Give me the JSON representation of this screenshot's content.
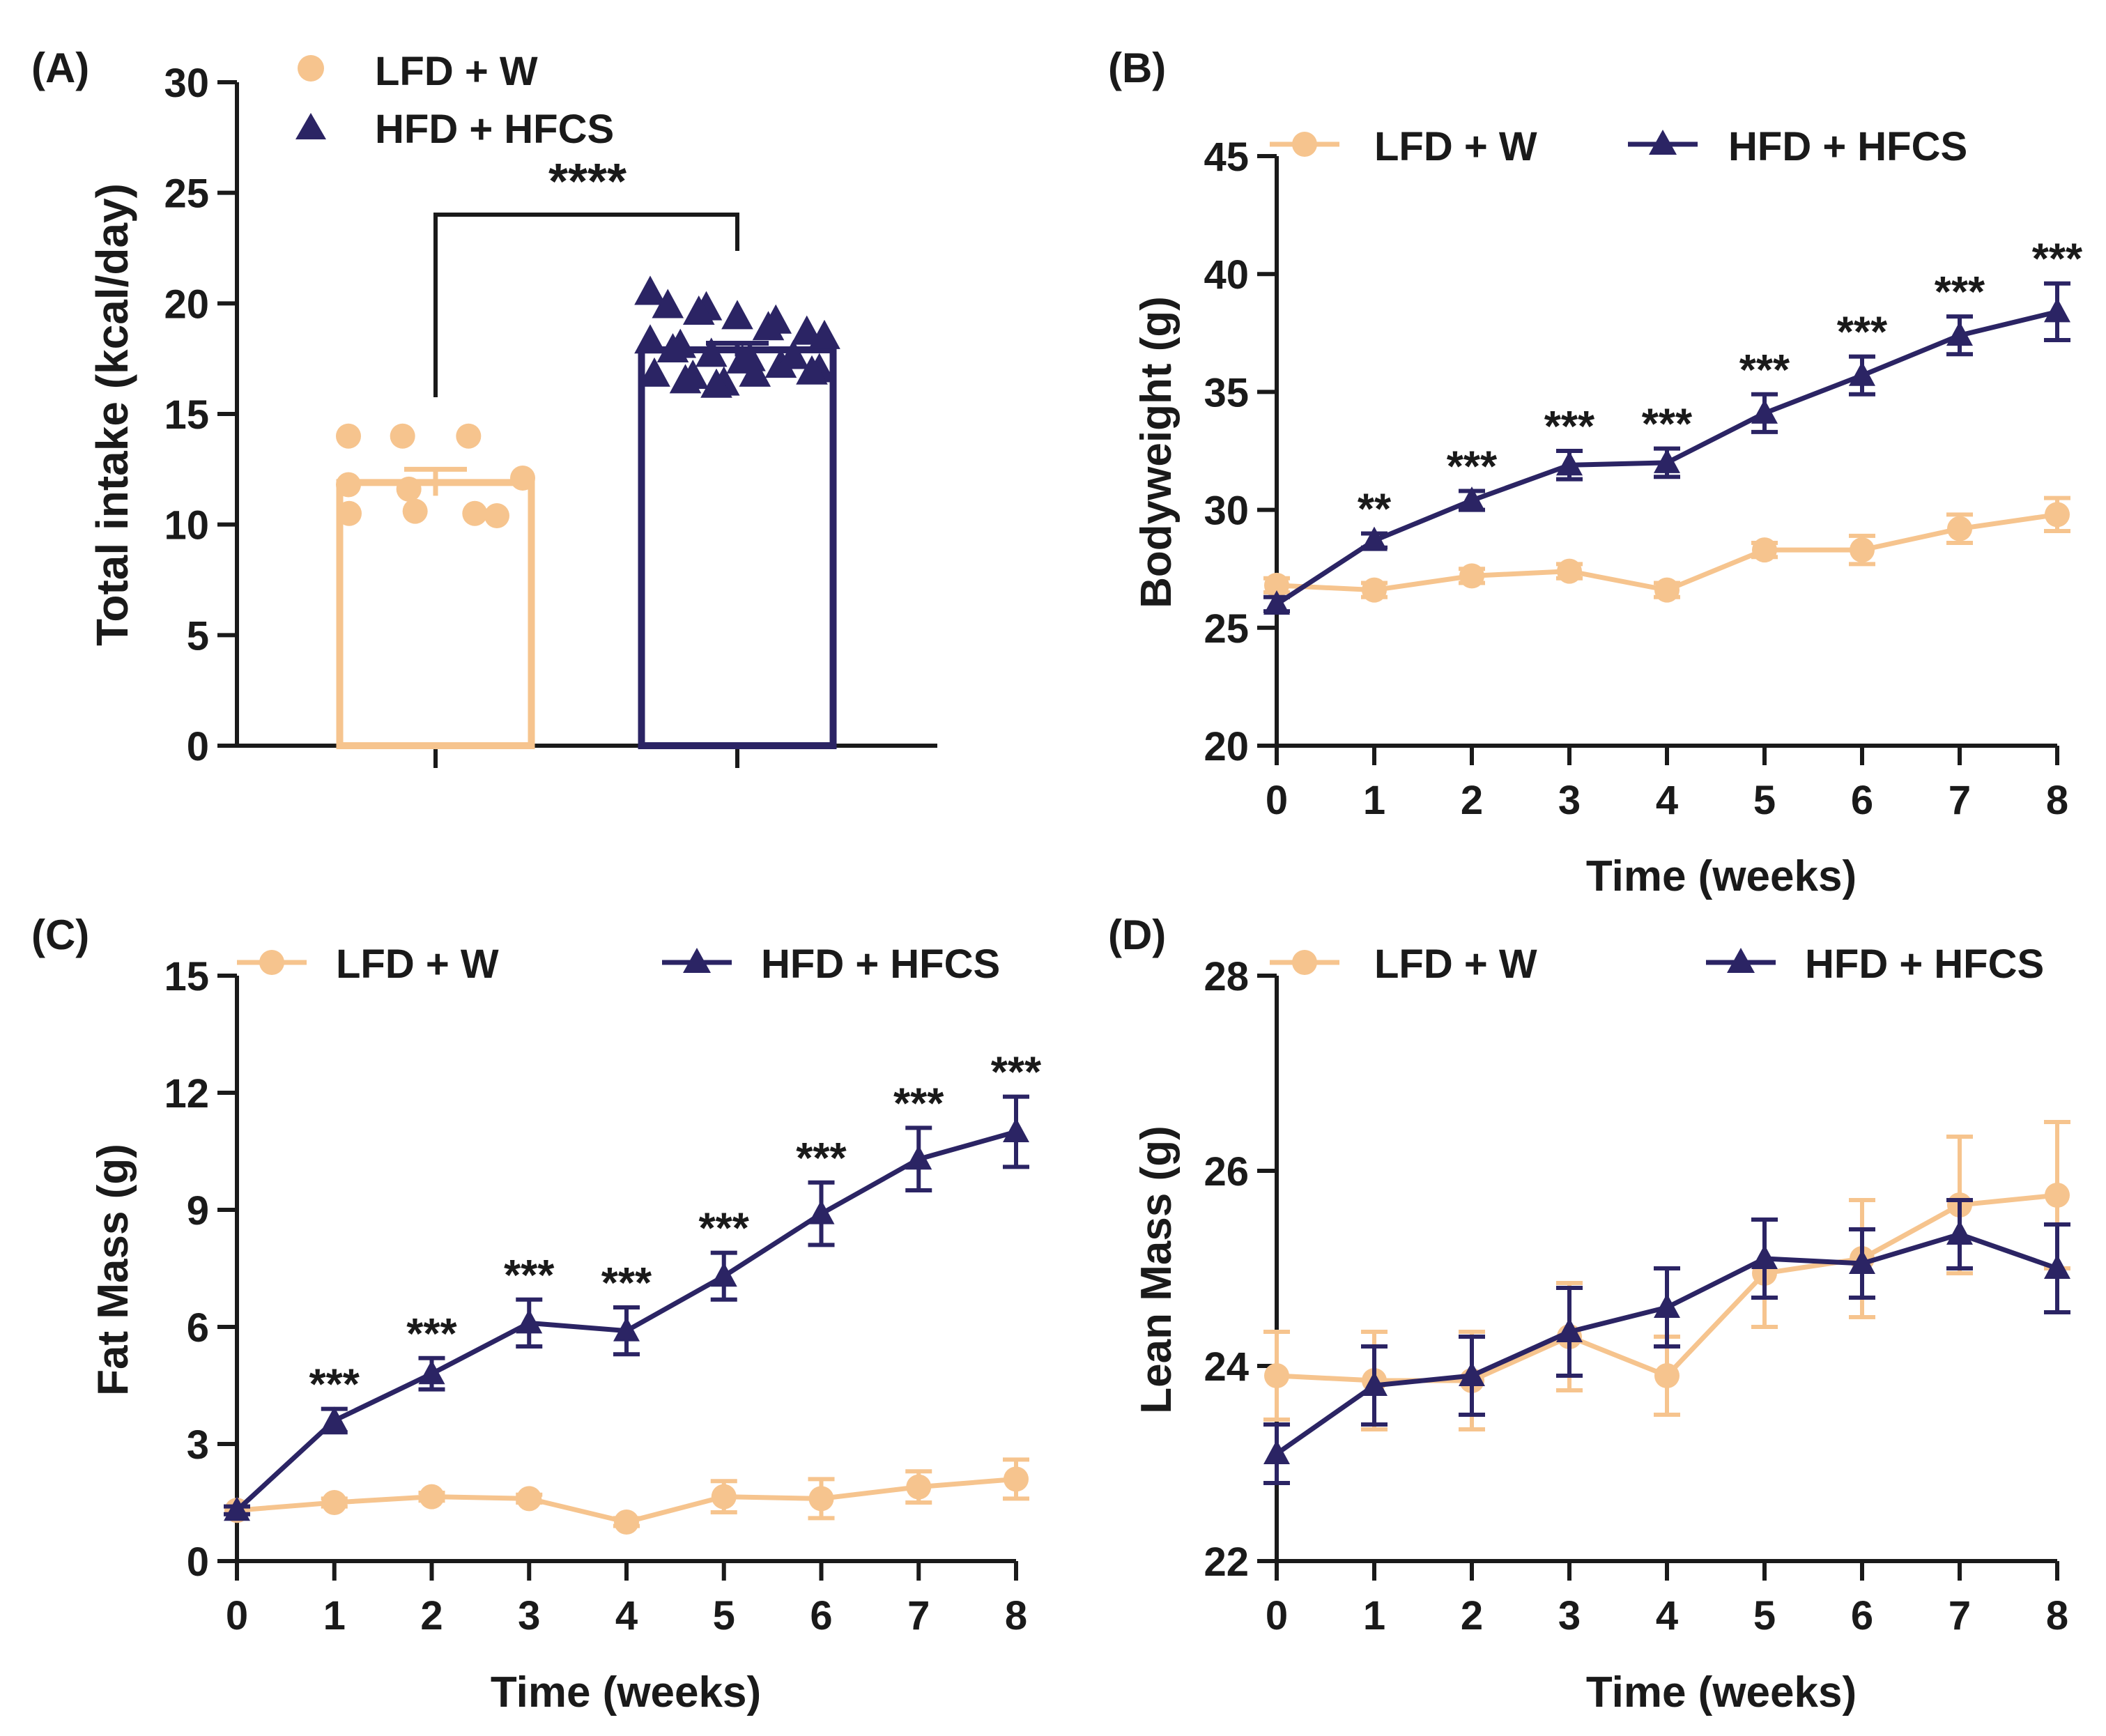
{
  "figure": {
    "groups": [
      {
        "name": "LFD + W",
        "color": "#f6c48e",
        "marker": "circle"
      },
      {
        "name": "HFD + HFCS",
        "color": "#2b2464",
        "marker": "triangle"
      }
    ]
  },
  "chart_data": [
    {
      "id": "A",
      "panel_label": "(A)",
      "type": "bar",
      "ylabel": "Total intake (kcal/day)",
      "xlabel": "",
      "ylim": [
        0,
        30
      ],
      "yticks": [
        0,
        5,
        10,
        15,
        20,
        25,
        30
      ],
      "categories": [
        "LFD + W",
        "HFD + HFCS"
      ],
      "legend": [
        "LFD + W",
        "HFD + HFCS"
      ],
      "significance": "****",
      "series": [
        {
          "name": "LFD + W",
          "mean": 11.9,
          "sem": 0.6,
          "points": [
            14.0,
            14.0,
            14.0,
            12.1,
            11.8,
            11.6,
            10.5,
            10.4,
            10.5,
            10.6
          ]
        },
        {
          "name": "HFD + HFCS",
          "mean": 17.9,
          "sem": 0.3,
          "points": [
            20.5,
            19.9,
            19.8,
            19.6,
            19.4,
            19.2,
            18.9,
            18.7,
            18.5,
            18.3,
            18.1,
            17.9,
            17.7,
            17.5,
            17.4,
            17.2,
            17.0,
            16.9,
            16.8,
            16.7,
            16.5,
            16.4,
            16.3,
            16.8,
            17.6
          ]
        }
      ]
    },
    {
      "id": "B",
      "panel_label": "(B)",
      "type": "line",
      "xlabel": "Time (weeks)",
      "ylabel": "Bodyweight (g)",
      "x": [
        0,
        1,
        2,
        3,
        4,
        5,
        6,
        7,
        8
      ],
      "ylim": [
        20,
        45
      ],
      "yticks": [
        20,
        25,
        30,
        35,
        40,
        45
      ],
      "legend": [
        "LFD + W",
        "HFD + HFCS"
      ],
      "significance": [
        "",
        "**",
        "***",
        "***",
        "***",
        "***",
        "***",
        "***",
        "***"
      ],
      "series": [
        {
          "name": "LFD + W",
          "values": [
            26.8,
            26.6,
            27.2,
            27.4,
            26.6,
            28.3,
            28.3,
            29.2,
            29.8
          ],
          "errors": [
            0.3,
            0.3,
            0.3,
            0.3,
            0.3,
            0.3,
            0.6,
            0.6,
            0.7
          ]
        },
        {
          "name": "HFD + HFCS",
          "values": [
            26.0,
            28.7,
            30.4,
            31.9,
            32.0,
            34.1,
            35.7,
            37.4,
            38.4
          ],
          "errors": [
            0.3,
            0.3,
            0.4,
            0.6,
            0.6,
            0.8,
            0.8,
            0.8,
            1.2
          ]
        }
      ]
    },
    {
      "id": "C",
      "panel_label": "(C)",
      "type": "line",
      "xlabel": "Time (weeks)",
      "ylabel": "Fat Mass (g)",
      "x": [
        0,
        1,
        2,
        3,
        4,
        5,
        6,
        7,
        8
      ],
      "ylim": [
        0,
        15
      ],
      "yticks": [
        0,
        3,
        6,
        9,
        12,
        15
      ],
      "legend": [
        "LFD + W",
        "HFD + HFCS"
      ],
      "significance": [
        "",
        "***",
        "***",
        "***",
        "***",
        "***",
        "***",
        "***",
        "***"
      ],
      "series": [
        {
          "name": "LFD + W",
          "values": [
            1.3,
            1.5,
            1.65,
            1.6,
            1.0,
            1.65,
            1.6,
            1.9,
            2.1
          ],
          "errors": [
            0.1,
            0.1,
            0.1,
            0.1,
            0.1,
            0.4,
            0.5,
            0.4,
            0.5
          ]
        },
        {
          "name": "HFD + HFCS",
          "values": [
            1.3,
            3.6,
            4.8,
            6.1,
            5.9,
            7.3,
            8.9,
            10.3,
            11.0
          ],
          "errors": [
            0.1,
            0.3,
            0.4,
            0.6,
            0.6,
            0.6,
            0.8,
            0.8,
            0.9
          ]
        }
      ]
    },
    {
      "id": "D",
      "panel_label": "(D)",
      "type": "line",
      "xlabel": "Time (weeks)",
      "ylabel": "Lean Mass (g)",
      "x": [
        0,
        1,
        2,
        3,
        4,
        5,
        6,
        7,
        8
      ],
      "ylim": [
        22,
        28
      ],
      "yticks": [
        22,
        24,
        26,
        28
      ],
      "legend": [
        "LFD + W",
        "HFD + HFCS"
      ],
      "significance": [
        "",
        "",
        "",
        "",
        "",
        "",
        "",
        "",
        ""
      ],
      "series": [
        {
          "name": "LFD + W",
          "values": [
            23.9,
            23.85,
            23.85,
            24.3,
            23.9,
            24.95,
            25.1,
            25.65,
            25.75
          ],
          "errors": [
            0.45,
            0.5,
            0.5,
            0.55,
            0.4,
            0.55,
            0.6,
            0.7,
            0.75
          ]
        },
        {
          "name": "HFD + HFCS",
          "values": [
            23.1,
            23.8,
            23.9,
            24.35,
            24.6,
            25.1,
            25.05,
            25.35,
            25.0
          ],
          "errors": [
            0.3,
            0.4,
            0.4,
            0.45,
            0.4,
            0.4,
            0.35,
            0.35,
            0.45
          ]
        }
      ]
    }
  ]
}
